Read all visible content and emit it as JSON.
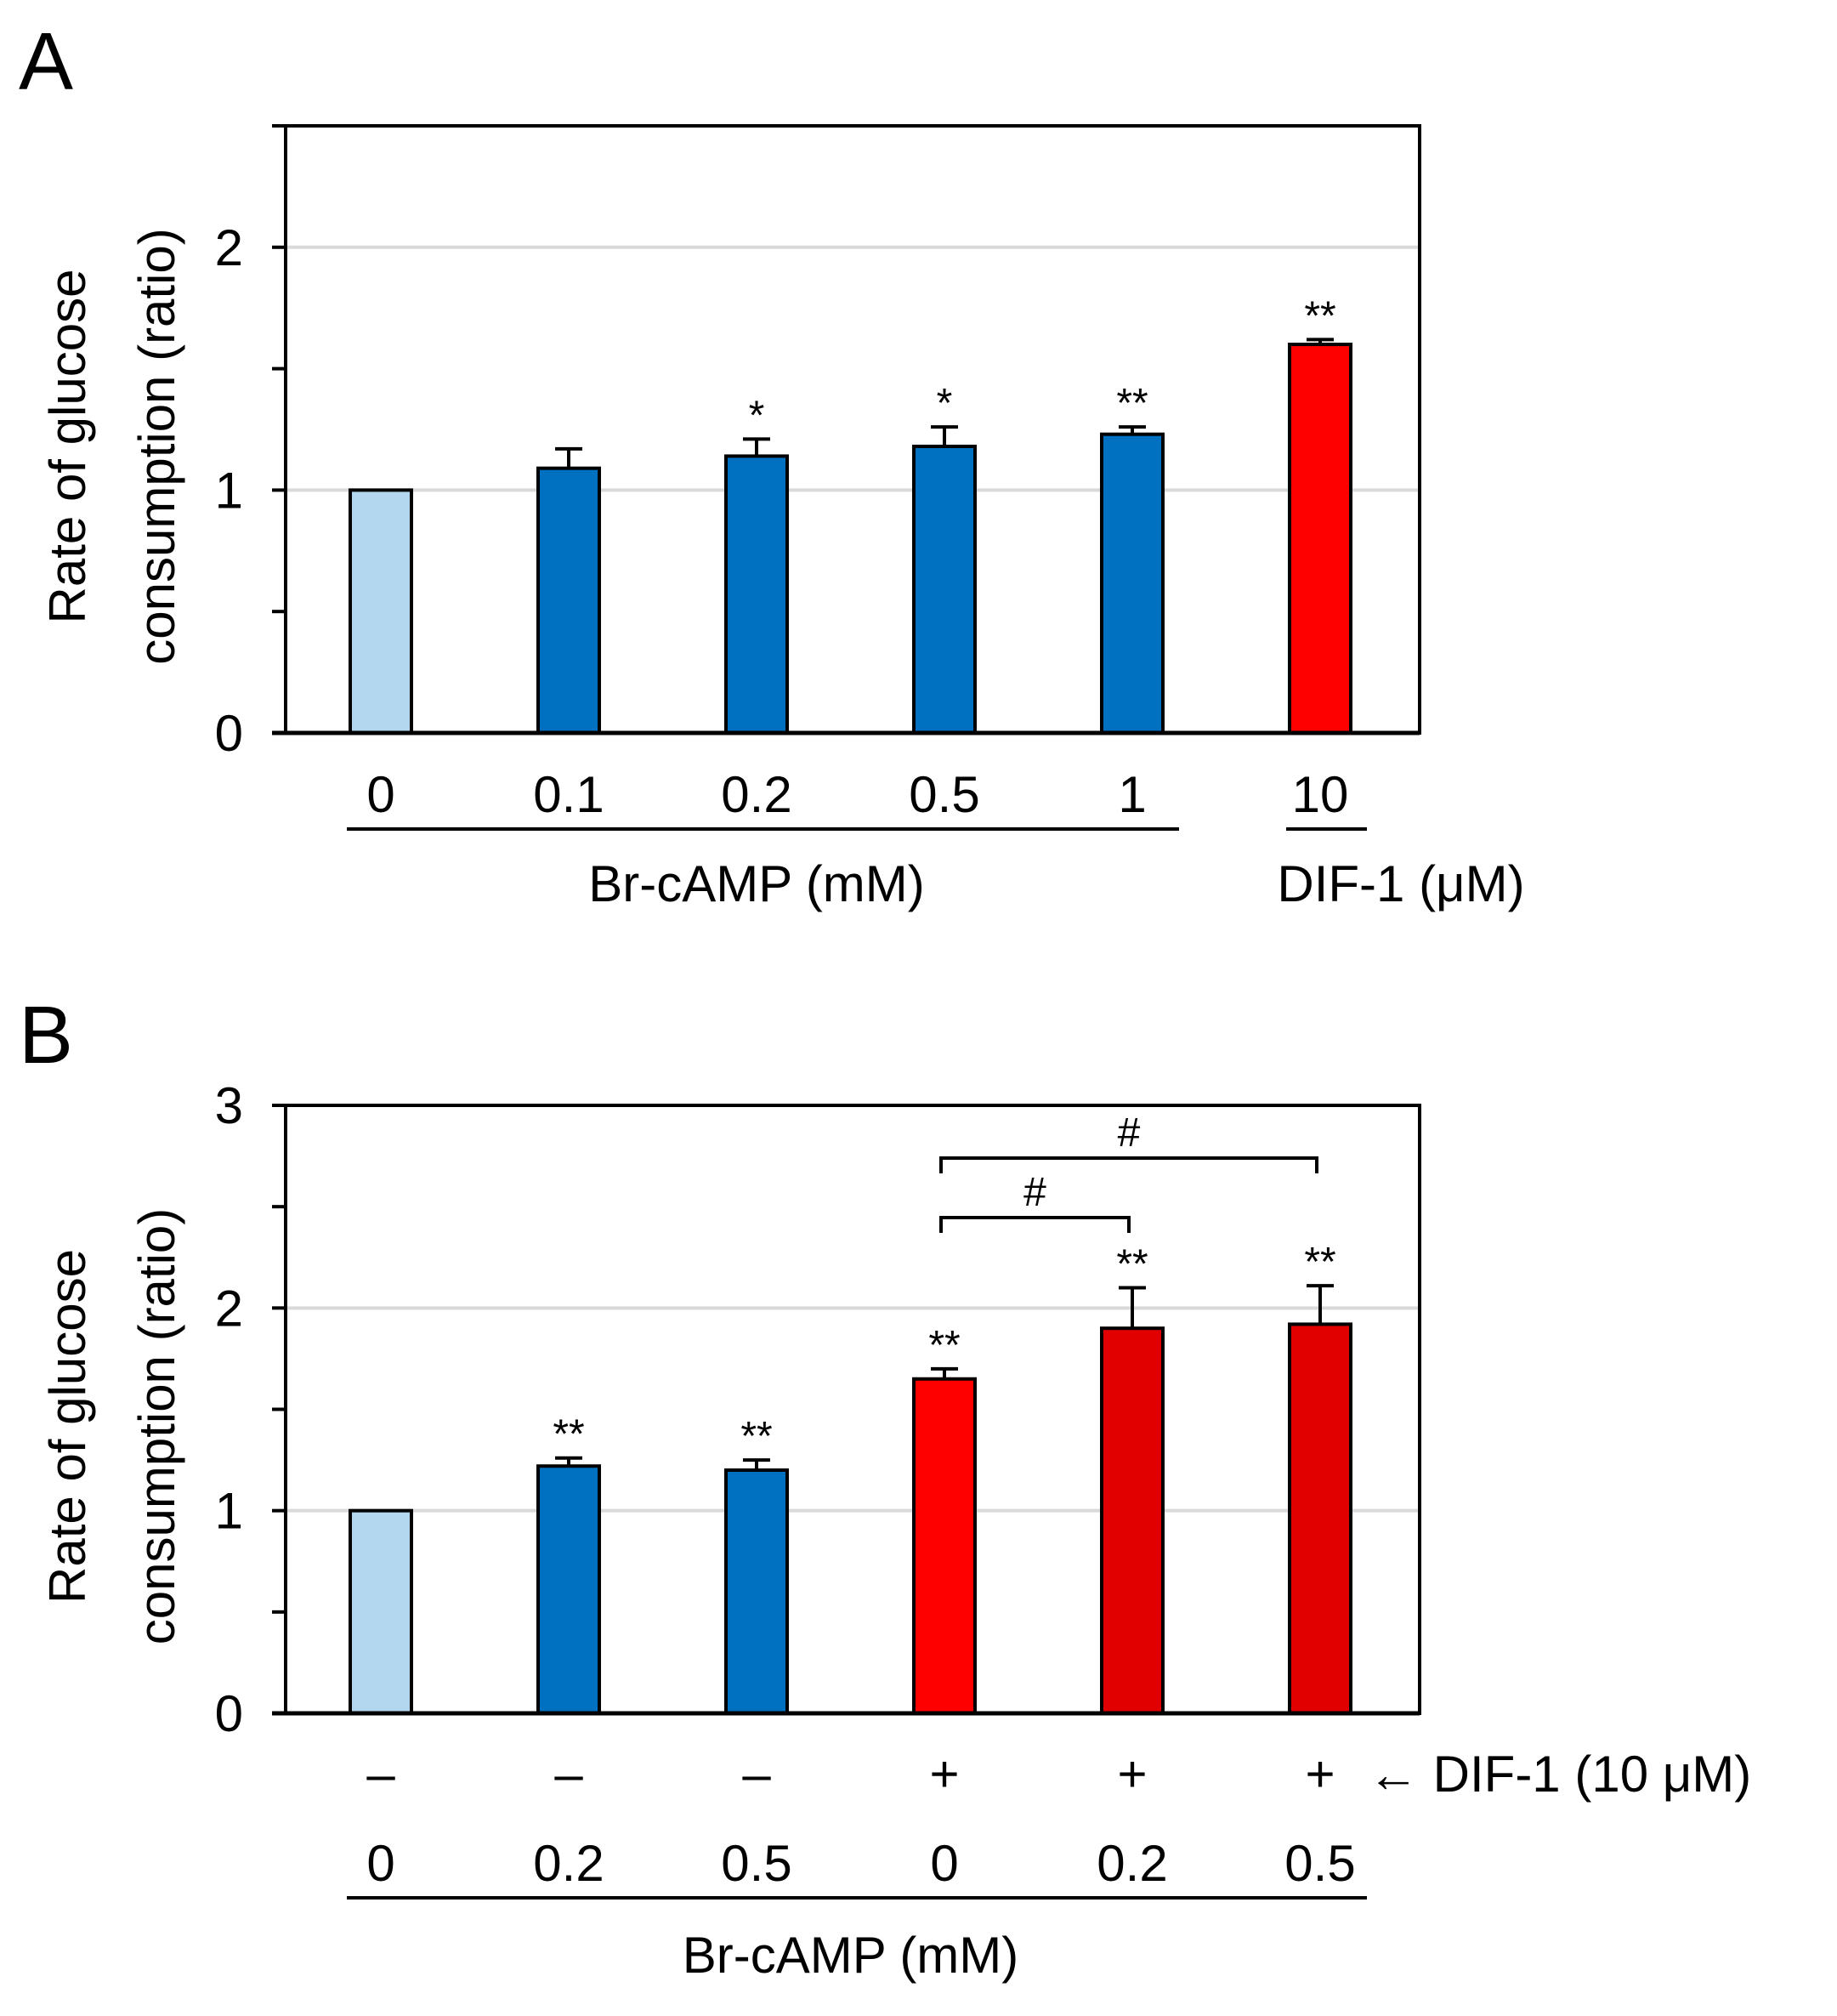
{
  "chart_data": [
    {
      "panel": "A",
      "type": "bar",
      "ylabel_line1": "Rate of glucose",
      "ylabel_line2": "consumption (ratio)",
      "ylim": [
        0,
        2.5
      ],
      "yticks": [
        "0",
        "1",
        "2"
      ],
      "gridlines": [
        1,
        2
      ],
      "categories": [
        "0",
        "0.1",
        "0.2",
        "0.5",
        "1",
        "10"
      ],
      "values": [
        1.0,
        1.09,
        1.14,
        1.18,
        1.23,
        1.6
      ],
      "errors": [
        0,
        0.08,
        0.07,
        0.08,
        0.03,
        0.02
      ],
      "significance": [
        "",
        "",
        "*",
        "*",
        "**",
        "**"
      ],
      "colors": [
        "#b3d7ee",
        "#0070c0",
        "#0070c0",
        "#0070c0",
        "#0070c0",
        "#ff0000"
      ],
      "groups": [
        {
          "label": "Br-cAMP (mM)",
          "from": 0,
          "to": 4
        },
        {
          "label": "DIF-1 (μM)",
          "from": 5,
          "to": 5
        }
      ]
    },
    {
      "panel": "B",
      "type": "bar",
      "ylabel_line1": "Rate of glucose",
      "ylabel_line2": "consumption (ratio)",
      "ylim": [
        0,
        3
      ],
      "yticks": [
        "0",
        "1",
        "2",
        "3"
      ],
      "gridlines": [
        1,
        2
      ],
      "dif_signs": [
        "–",
        "–",
        "–",
        "+",
        "+",
        "+"
      ],
      "dif_label": "← DIF-1 (10 μM)",
      "categories": [
        "0",
        "0.2",
        "0.5",
        "0",
        "0.2",
        "0.5"
      ],
      "values": [
        1.0,
        1.22,
        1.2,
        1.65,
        1.9,
        1.92
      ],
      "errors": [
        0,
        0.04,
        0.05,
        0.05,
        0.2,
        0.19
      ],
      "significance": [
        "",
        "**",
        "**",
        "**",
        "**",
        "**"
      ],
      "colors": [
        "#b3d7ee",
        "#0070c0",
        "#0070c0",
        "#ff0000",
        "#e00000",
        "#e00000"
      ],
      "brackets": [
        {
          "from": 3,
          "to": 4,
          "label": "#"
        },
        {
          "from": 3,
          "to": 5,
          "label": "#"
        }
      ],
      "groups": [
        {
          "label": "Br-cAMP (mM)",
          "from": 0,
          "to": 5
        }
      ]
    }
  ],
  "panel_labels": {
    "a": "A",
    "b": "B"
  }
}
